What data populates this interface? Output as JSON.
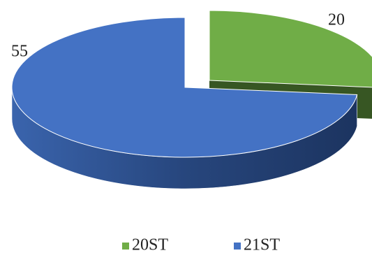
{
  "chart_data": {
    "type": "pie",
    "categories": [
      "20ST",
      "21ST"
    ],
    "values": [
      20,
      55
    ],
    "colors": [
      "#70ad47",
      "#4472c4"
    ],
    "side_colors": [
      "#375623",
      "#2f4f86"
    ],
    "legend": "bottom",
    "explode": [
      0,
      0
    ]
  }
}
